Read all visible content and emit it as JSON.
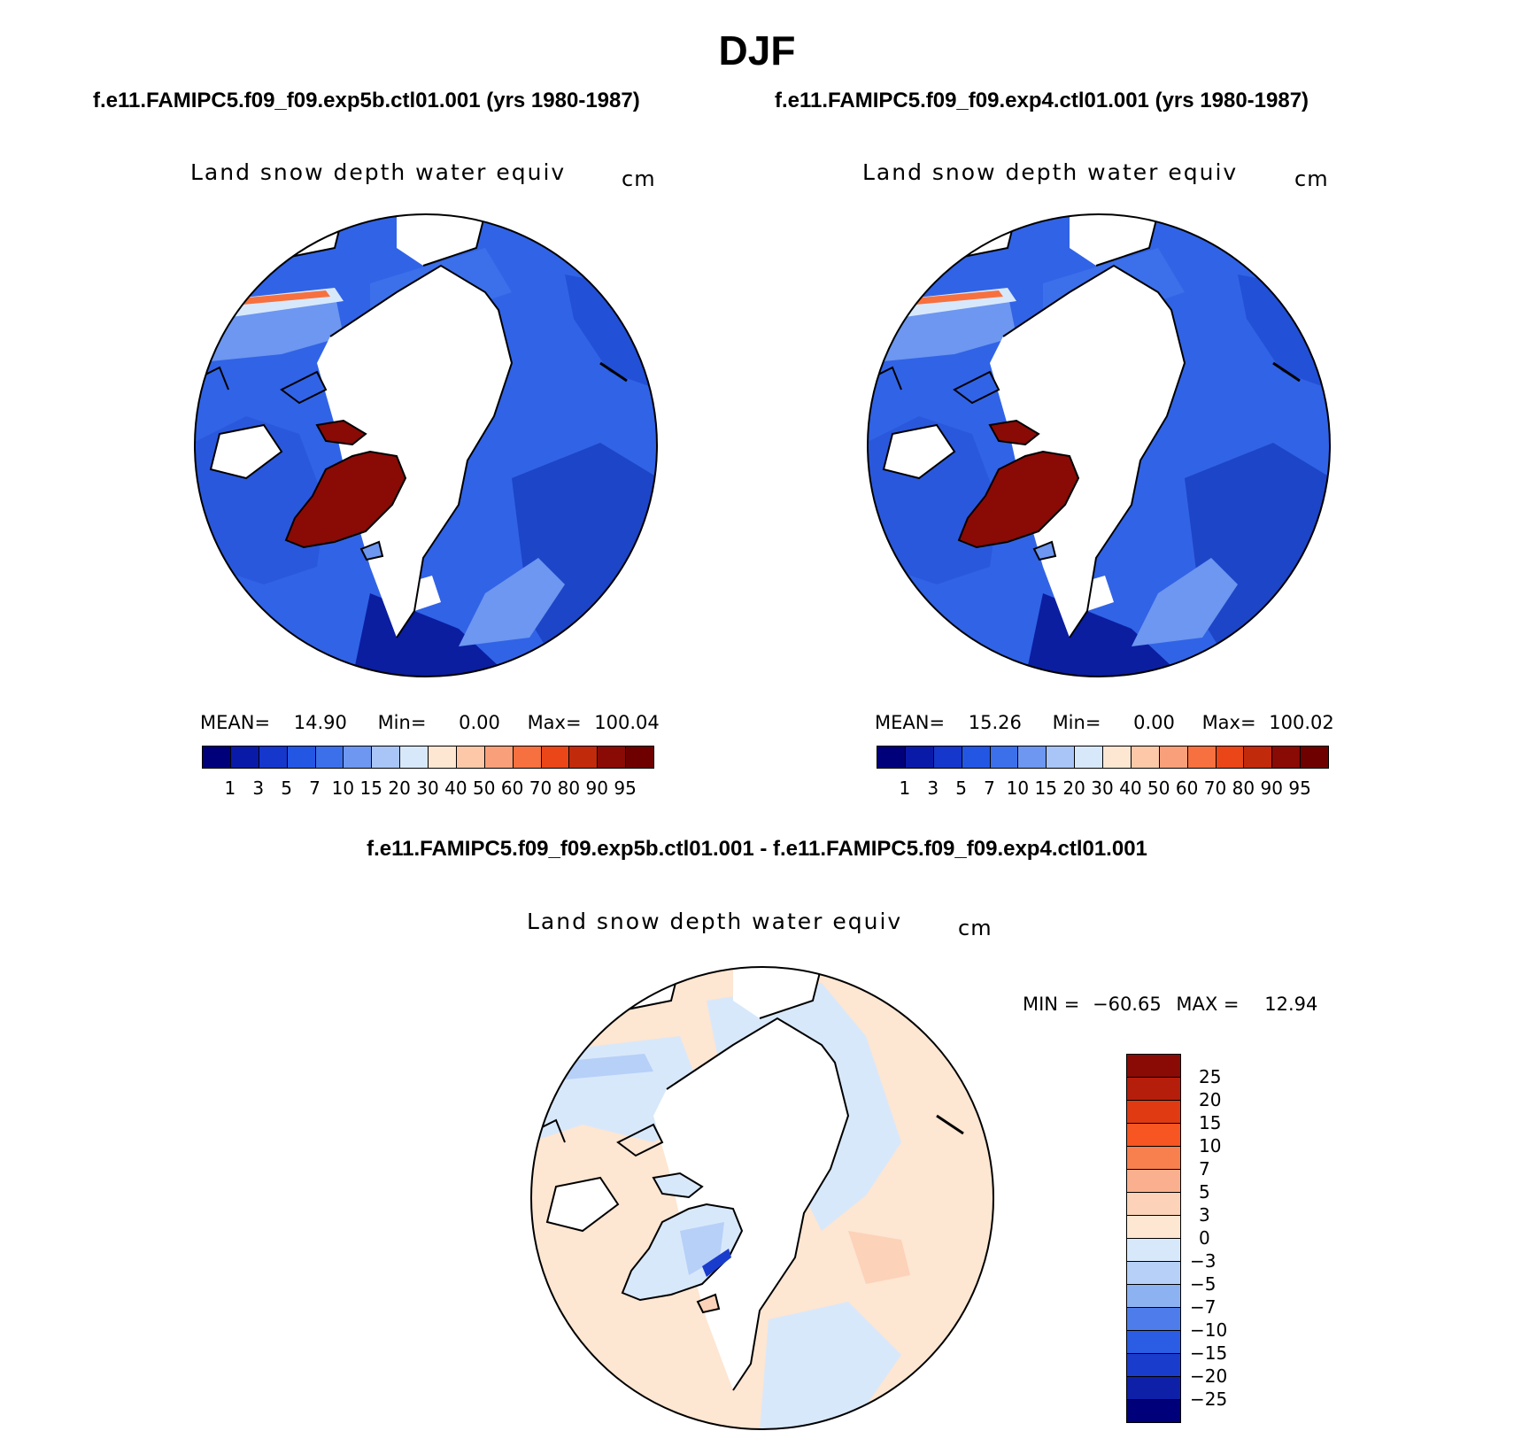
{
  "page": {
    "season": "DJF",
    "left_case": "f.e11.FAMIPC5.f09_f09.exp5b.ctl01.001 (yrs 1980-1987)",
    "right_case": "f.e11.FAMIPC5.f09_f09.exp4.ctl01.001 (yrs 1980-1987)",
    "diff_case": "f.e11.FAMIPC5.f09_f09.exp5b.ctl01.001 - f.e11.FAMIPC5.f09_f09.exp4.ctl01.001"
  },
  "panels": {
    "left": {
      "variable": "Land snow depth water equiv",
      "unit": "cm",
      "mean_label": "MEAN=",
      "mean": "14.90",
      "min_label": "Min=",
      "min": "0.00",
      "max_label": "Max=",
      "max": "100.04"
    },
    "right": {
      "variable": "Land snow depth water equiv",
      "unit": "cm",
      "mean_label": "MEAN=",
      "mean": "15.26",
      "min_label": "Min=",
      "min": "0.00",
      "max_label": "Max=",
      "max": "100.02"
    },
    "diff": {
      "variable": "Land snow depth water equiv",
      "unit": "cm",
      "min_label": "MIN =",
      "min": "−60.65",
      "max_label": "MAX =",
      "max": "12.94"
    }
  },
  "colorbar_abs": {
    "ticks": [
      "1",
      "3",
      "5",
      "7",
      "10",
      "15",
      "20",
      "30",
      "40",
      "50",
      "60",
      "70",
      "80",
      "90",
      "95"
    ],
    "colors": [
      "#00007a",
      "#0a1aa8",
      "#1537cc",
      "#2456e4",
      "#3c70ea",
      "#6d97f0",
      "#a9c5f7",
      "#d8e8fb",
      "#fde6d2",
      "#fcc8a8",
      "#f9a07a",
      "#f6713f",
      "#ea4618",
      "#c22a0c",
      "#8a0a06",
      "#6e0000"
    ]
  },
  "colorbar_diff": {
    "ticks": [
      "25",
      "20",
      "15",
      "10",
      "7",
      "5",
      "3",
      "0",
      "−3",
      "−5",
      "−7",
      "−10",
      "−15",
      "−20",
      "−25"
    ],
    "colors": [
      "#8a0a06",
      "#b51e0a",
      "#e03a12",
      "#f75522",
      "#f8804f",
      "#fab08e",
      "#fcd2b8",
      "#fde6d2",
      "#d8e8fb",
      "#b6d0f8",
      "#8cb2f2",
      "#4e7deb",
      "#2a5ce4",
      "#1a3ccc",
      "#0e20a8",
      "#00007a"
    ]
  }
}
